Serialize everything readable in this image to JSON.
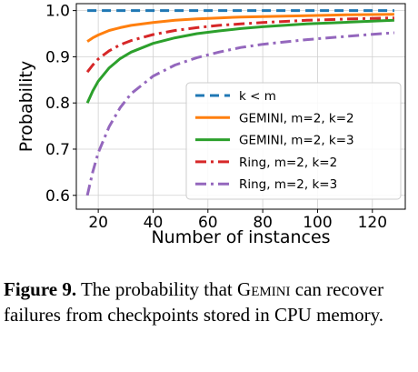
{
  "chart_data": {
    "type": "line",
    "xlabel": "Number of instances",
    "ylabel": "Probability",
    "xlim": [
      12,
      132
    ],
    "ylim": [
      0.57,
      1.015
    ],
    "xticks": [
      20,
      40,
      60,
      80,
      100,
      120
    ],
    "yticks": [
      0.6,
      0.7,
      0.8,
      0.9,
      1.0
    ],
    "ytick_labels": [
      "0.6",
      "0.7",
      "0.8",
      "0.9",
      "1.0"
    ],
    "grid": true,
    "legend_position": "lower-right",
    "series": [
      {
        "name": "k < m",
        "color": "#1f77b4",
        "dash": "dashed",
        "x": [
          16,
          128
        ],
        "y": [
          1.0,
          1.0
        ]
      },
      {
        "name": "GEMINI, m=2, k=2",
        "color": "#ff7f0e",
        "dash": "solid",
        "x": [
          16,
          18,
          20,
          24,
          28,
          32,
          40,
          48,
          56,
          64,
          72,
          80,
          96,
          112,
          128
        ],
        "y": [
          0.933,
          0.941,
          0.947,
          0.957,
          0.963,
          0.968,
          0.974,
          0.979,
          0.982,
          0.984,
          0.986,
          0.987,
          0.989,
          0.991,
          0.992
        ]
      },
      {
        "name": "GEMINI, m=2, k=3",
        "color": "#2ca02c",
        "dash": "solid",
        "x": [
          16,
          18,
          20,
          24,
          28,
          32,
          40,
          48,
          56,
          64,
          72,
          80,
          96,
          112,
          128
        ],
        "y": [
          0.8,
          0.826,
          0.847,
          0.876,
          0.896,
          0.91,
          0.929,
          0.941,
          0.95,
          0.956,
          0.961,
          0.965,
          0.971,
          0.975,
          0.979
        ]
      },
      {
        "name": "Ring, m=2, k=2",
        "color": "#d62728",
        "dash": "dashdot",
        "x": [
          16,
          18,
          20,
          24,
          28,
          32,
          40,
          48,
          56,
          64,
          72,
          80,
          96,
          112,
          128
        ],
        "y": [
          0.867,
          0.882,
          0.895,
          0.913,
          0.926,
          0.935,
          0.948,
          0.957,
          0.963,
          0.968,
          0.971,
          0.974,
          0.979,
          0.982,
          0.984
        ]
      },
      {
        "name": "Ring, m=2, k=3",
        "color": "#9467bd",
        "dash": "dashdot",
        "x": [
          16,
          18,
          20,
          24,
          28,
          32,
          40,
          48,
          56,
          64,
          72,
          80,
          96,
          112,
          128
        ],
        "y": [
          0.6,
          0.651,
          0.692,
          0.749,
          0.79,
          0.82,
          0.858,
          0.882,
          0.898,
          0.91,
          0.92,
          0.927,
          0.937,
          0.945,
          0.952
        ]
      }
    ]
  },
  "caption": {
    "figure_number": "Figure 9.",
    "text_before": " The probability that ",
    "system_name": "Gemini",
    "text_after": " can recover failures from checkpoints stored in CPU memory."
  }
}
